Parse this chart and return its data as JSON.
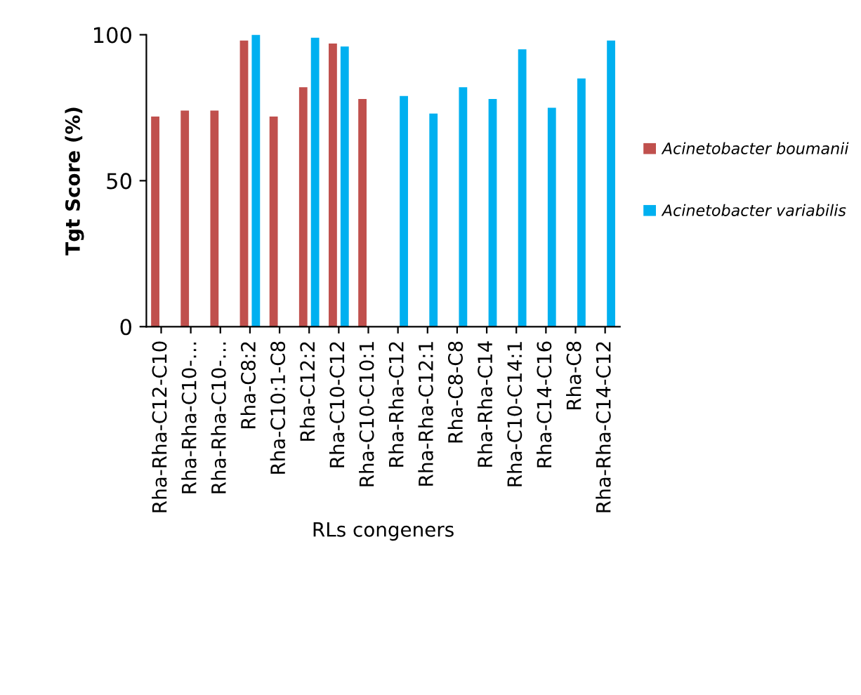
{
  "chart_data": {
    "type": "bar",
    "xlabel": "RLs congeners",
    "ylabel": "Tgt Score (%)",
    "categories": [
      "Rha-Rha-C12-C10",
      "Rha-Rha-C10-…",
      "Rha-Rha-C10-…",
      "Rha-C8:2",
      "Rha-C10:1-C8",
      "Rha-C12:2",
      "Rha-C10-C12",
      "Rha-C10-C10:1",
      "Rha-Rha-C12",
      "Rha-Rha-C12:1",
      "Rha-C8-C8",
      "Rha-Rha-C14",
      "Rha-C10-C14:1",
      "Rha-C14-C16",
      "Rha-C8",
      "Rha-Rha-C14-C12"
    ],
    "series": [
      {
        "name": "Acinetobacter boumanii",
        "color": "#c0504d",
        "values": [
          72,
          74,
          74,
          98,
          72,
          82,
          97,
          78,
          0,
          0,
          0,
          0,
          0,
          0,
          0,
          0
        ]
      },
      {
        "name": "Acinetobacter variabilis",
        "color": "#00b0f0",
        "values": [
          0,
          0,
          0,
          100,
          0,
          99,
          96,
          0,
          79,
          73,
          82,
          78,
          95,
          75,
          85,
          98
        ]
      }
    ],
    "ylim": [
      0,
      100
    ],
    "yticks": [
      0,
      50,
      100
    ],
    "grid": false,
    "legend": "right"
  }
}
